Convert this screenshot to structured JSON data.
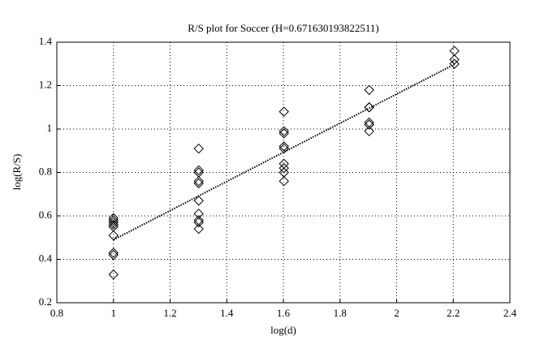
{
  "chart_data": {
    "type": "scatter",
    "title": "R/S plot for Soccer (H=0.671630193822511)",
    "xlabel": "log(d)",
    "ylabel": "log(R/S)",
    "xlim": [
      0.8,
      2.4
    ],
    "xticks": [
      0.8,
      1,
      1.2,
      1.4,
      1.6,
      1.8,
      2,
      2.2,
      2.4
    ],
    "ylim": [
      0.2,
      1.4
    ],
    "yticks": [
      0.2,
      0.4,
      0.6,
      0.8,
      1,
      1.2,
      1.4
    ],
    "grid": true,
    "series": [
      {
        "type": "scatter",
        "color": "#000000",
        "x": [
          1,
          1,
          1,
          1,
          1,
          1,
          1,
          1,
          1,
          1.301,
          1.301,
          1.301,
          1.301,
          1.301,
          1.301,
          1.301,
          1.301,
          1.301,
          1.301,
          1.602,
          1.602,
          1.602,
          1.602,
          1.602,
          1.602,
          1.602,
          1.602,
          1.602,
          1.903,
          1.903,
          1.903,
          1.903,
          1.903,
          1.903,
          2.204,
          2.204,
          2.204
        ],
        "values": [
          0.59,
          0.58,
          0.57,
          0.56,
          0.55,
          0.51,
          0.43,
          0.42,
          0.33,
          0.91,
          0.81,
          0.8,
          0.76,
          0.75,
          0.67,
          0.61,
          0.58,
          0.57,
          0.54,
          1.08,
          0.99,
          0.98,
          0.92,
          0.91,
          0.84,
          0.82,
          0.8,
          0.76,
          1.18,
          1.1,
          1.1,
          1.03,
          1.02,
          0.99,
          1.36,
          1.32,
          1.3
        ]
      },
      {
        "type": "line",
        "color": "#000000",
        "x": [
          1,
          2.204
        ],
        "values": [
          0.49,
          1.298
        ]
      }
    ]
  }
}
